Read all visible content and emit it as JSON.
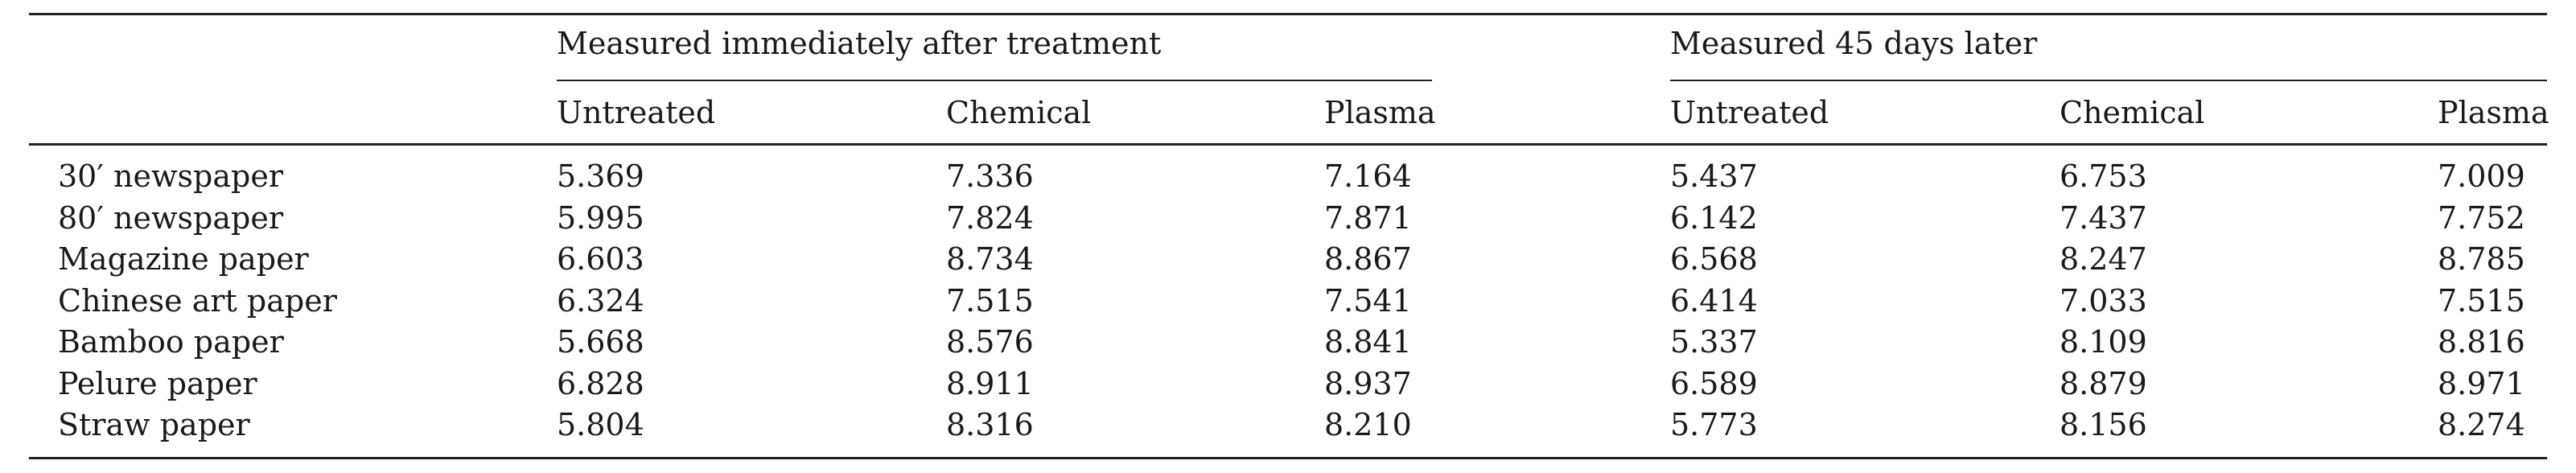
{
  "table": {
    "groups": [
      {
        "label": "Measured immediately after treatment"
      },
      {
        "label": "Measured 45 days later"
      }
    ],
    "columns": [
      "Untreated",
      "Chemical",
      "Plasma",
      "Untreated",
      "Chemical",
      "Plasma"
    ],
    "rows": [
      {
        "label": "30′ newspaper",
        "values": [
          "5.369",
          "7.336",
          "7.164",
          "5.437",
          "6.753",
          "7.009"
        ]
      },
      {
        "label": "80′ newspaper",
        "values": [
          "5.995",
          "7.824",
          "7.871",
          "6.142",
          "7.437",
          "7.752"
        ]
      },
      {
        "label": "Magazine paper",
        "values": [
          "6.603",
          "8.734",
          "8.867",
          "6.568",
          "8.247",
          "8.785"
        ]
      },
      {
        "label": "Chinese art paper",
        "values": [
          "6.324",
          "7.515",
          "7.541",
          "6.414",
          "7.033",
          "7.515"
        ]
      },
      {
        "label": "Bamboo paper",
        "values": [
          "5.668",
          "8.576",
          "8.841",
          "5.337",
          "8.109",
          "8.816"
        ]
      },
      {
        "label": "Pelure paper",
        "values": [
          "6.828",
          "8.911",
          "8.937",
          "6.589",
          "8.879",
          "8.971"
        ]
      },
      {
        "label": "Straw paper",
        "values": [
          "5.804",
          "8.316",
          "8.210",
          "5.773",
          "8.156",
          "8.274"
        ]
      }
    ]
  }
}
